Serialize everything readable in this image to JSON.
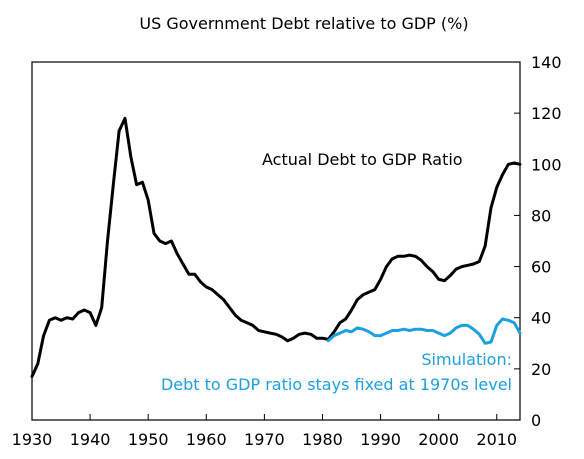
{
  "chart_data": {
    "type": "line",
    "title": "US Government Debt relative to GDP (%)",
    "xlabel": "",
    "ylabel": "",
    "xlim": [
      1930,
      2014
    ],
    "ylim": [
      0,
      140
    ],
    "x_ticks": [
      1930,
      1940,
      1950,
      1960,
      1970,
      1980,
      1990,
      2000,
      2010
    ],
    "y_ticks": [
      0,
      20,
      40,
      60,
      80,
      100,
      120,
      140
    ],
    "y_axis_side": "right",
    "grid": false,
    "annotations": [
      {
        "text": "Actual Debt to GDP Ratio",
        "series": "actual"
      },
      {
        "text": "Simulation:",
        "series": "simulation"
      },
      {
        "text": "Debt to GDP ratio stays fixed at 1970s level",
        "series": "simulation"
      }
    ],
    "series": [
      {
        "id": "actual",
        "color": "#000000",
        "points": [
          [
            1930,
            17
          ],
          [
            1931,
            22
          ],
          [
            1932,
            33
          ],
          [
            1933,
            39
          ],
          [
            1934,
            40
          ],
          [
            1935,
            39
          ],
          [
            1936,
            40
          ],
          [
            1937,
            39.5
          ],
          [
            1938,
            42
          ],
          [
            1939,
            43
          ],
          [
            1940,
            42
          ],
          [
            1941,
            37
          ],
          [
            1942,
            44
          ],
          [
            1943,
            70
          ],
          [
            1944,
            92
          ],
          [
            1945,
            113
          ],
          [
            1946,
            118
          ],
          [
            1947,
            103
          ],
          [
            1948,
            92
          ],
          [
            1949,
            93
          ],
          [
            1950,
            86
          ],
          [
            1951,
            73
          ],
          [
            1952,
            70
          ],
          [
            1953,
            69
          ],
          [
            1954,
            70
          ],
          [
            1955,
            65
          ],
          [
            1956,
            61
          ],
          [
            1957,
            57
          ],
          [
            1958,
            57
          ],
          [
            1959,
            54
          ],
          [
            1960,
            52
          ],
          [
            1961,
            51
          ],
          [
            1962,
            49
          ],
          [
            1963,
            47
          ],
          [
            1964,
            44
          ],
          [
            1965,
            41
          ],
          [
            1966,
            39
          ],
          [
            1967,
            38
          ],
          [
            1968,
            37
          ],
          [
            1969,
            35
          ],
          [
            1970,
            34.5
          ],
          [
            1971,
            34
          ],
          [
            1972,
            33.5
          ],
          [
            1973,
            32.5
          ],
          [
            1974,
            31
          ],
          [
            1975,
            32
          ],
          [
            1976,
            33.5
          ],
          [
            1977,
            34
          ],
          [
            1978,
            33.5
          ],
          [
            1979,
            32
          ],
          [
            1980,
            32
          ],
          [
            1981,
            31.5
          ],
          [
            1982,
            34.5
          ],
          [
            1983,
            38
          ],
          [
            1984,
            39.5
          ],
          [
            1985,
            43
          ],
          [
            1986,
            47
          ],
          [
            1987,
            49
          ],
          [
            1988,
            50
          ],
          [
            1989,
            51
          ],
          [
            1990,
            55
          ],
          [
            1991,
            60
          ],
          [
            1992,
            63
          ],
          [
            1993,
            64
          ],
          [
            1994,
            64
          ],
          [
            1995,
            64.5
          ],
          [
            1996,
            64
          ],
          [
            1997,
            62.5
          ],
          [
            1998,
            60
          ],
          [
            1999,
            58
          ],
          [
            2000,
            55
          ],
          [
            2001,
            54.5
          ],
          [
            2002,
            56.5
          ],
          [
            2003,
            59
          ],
          [
            2004,
            60
          ],
          [
            2005,
            60.5
          ],
          [
            2006,
            61
          ],
          [
            2007,
            62
          ],
          [
            2008,
            68
          ],
          [
            2009,
            83
          ],
          [
            2010,
            91
          ],
          [
            2011,
            96
          ],
          [
            2012,
            100
          ],
          [
            2013,
            100.5
          ],
          [
            2014,
            100
          ]
        ]
      },
      {
        "id": "simulation",
        "color": "#1ca0e0",
        "points": [
          [
            1981,
            31
          ],
          [
            1982,
            33
          ],
          [
            1983,
            34
          ],
          [
            1984,
            35
          ],
          [
            1985,
            34.5
          ],
          [
            1986,
            36
          ],
          [
            1987,
            35.5
          ],
          [
            1988,
            34.5
          ],
          [
            1989,
            33
          ],
          [
            1990,
            33
          ],
          [
            1991,
            34
          ],
          [
            1992,
            35
          ],
          [
            1993,
            35
          ],
          [
            1994,
            35.5
          ],
          [
            1995,
            35
          ],
          [
            1996,
            35.5
          ],
          [
            1997,
            35.5
          ],
          [
            1998,
            35
          ],
          [
            1999,
            35
          ],
          [
            2000,
            34
          ],
          [
            2001,
            33
          ],
          [
            2002,
            34
          ],
          [
            2003,
            36
          ],
          [
            2004,
            37
          ],
          [
            2005,
            37
          ],
          [
            2006,
            35.5
          ],
          [
            2007,
            33.5
          ],
          [
            2008,
            30
          ],
          [
            2009,
            30.5
          ],
          [
            2010,
            37
          ],
          [
            2011,
            39.5
          ],
          [
            2012,
            39
          ],
          [
            2013,
            38
          ],
          [
            2014,
            34
          ]
        ]
      }
    ]
  }
}
